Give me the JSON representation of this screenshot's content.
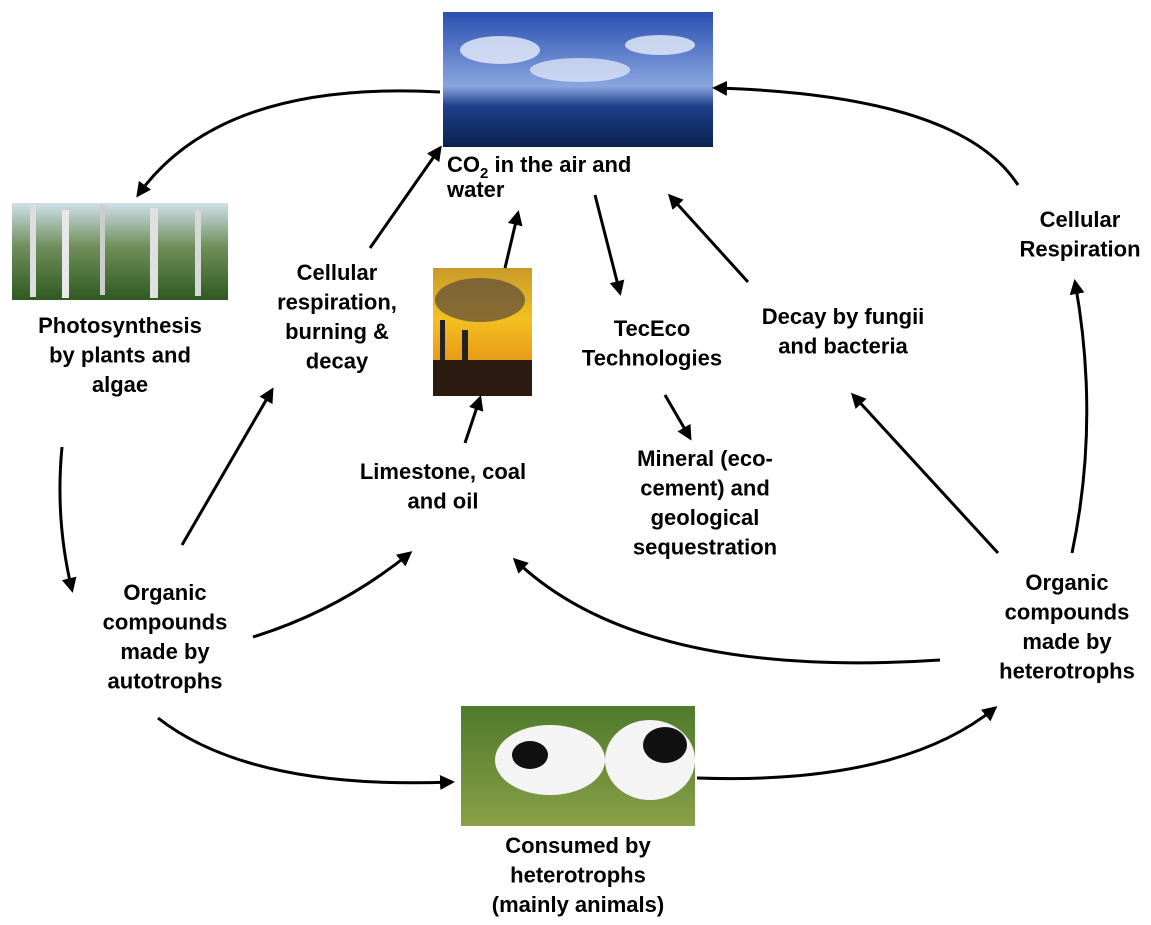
{
  "nodes": [
    {
      "lines": [
        [
          "CO",
          "2",
          " in the air and"
        ],
        "water"
      ]
    },
    {
      "lines": [
        "Photosynthesis",
        "by plants and",
        "algae"
      ]
    },
    {
      "lines": [
        "Cellular",
        "respiration,",
        "burning &",
        "decay"
      ]
    },
    {
      "lines": [
        "TecEco",
        "Technologies"
      ]
    },
    {
      "lines": [
        "Decay by fungii",
        "and bacteria"
      ]
    },
    {
      "lines": [
        "Cellular",
        "Respiration"
      ]
    },
    {
      "lines": [
        "Limestone, coal",
        "and oil"
      ]
    },
    {
      "lines": [
        "Mineral (eco-",
        "cement) and",
        "geological",
        "sequestration"
      ]
    },
    {
      "lines": [
        "Organic",
        "compounds",
        "made by",
        "autotrophs"
      ]
    },
    {
      "lines": [
        "Organic",
        "compounds",
        "made by",
        "heterotrophs"
      ]
    },
    {
      "lines": [
        "Consumed by",
        "heterotrophs",
        "(mainly animals)"
      ]
    }
  ]
}
